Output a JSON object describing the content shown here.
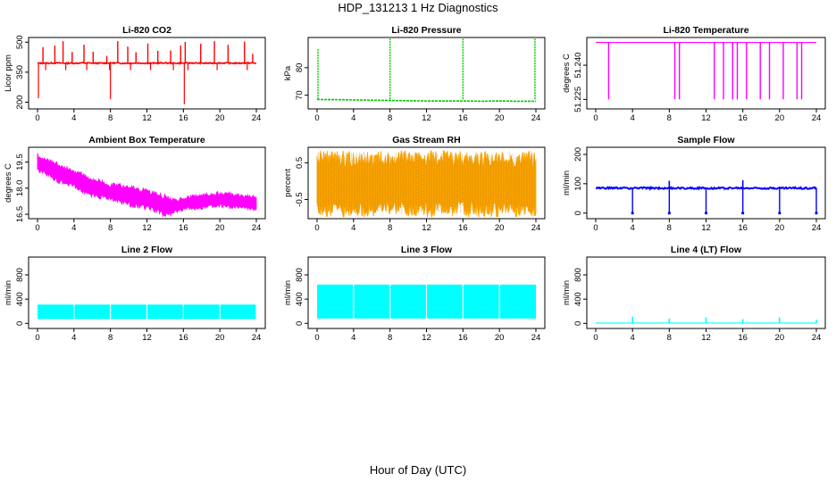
{
  "figure": {
    "title": "HDP_131213  1 Hz Diagnostics",
    "xlabel": "Hour of Day (UTC)"
  },
  "chart_data": [
    {
      "type": "line",
      "title": "Li-820 CO2",
      "ylabel": "Licor ppm",
      "color": "#ff0000",
      "xlim": [
        0,
        24
      ],
      "ylim": [
        180,
        510
      ],
      "xticks": [
        "0",
        "4",
        "8",
        "12",
        "16",
        "20",
        "24"
      ],
      "yticks": [
        {
          "v": 200,
          "label": "200"
        },
        {
          "v": 350,
          "label": "350"
        },
        {
          "v": 500,
          "label": "500"
        }
      ],
      "baseline": 395,
      "x": [
        0,
        0.3,
        0.8,
        2,
        3,
        4,
        5,
        6,
        7,
        8,
        9,
        10,
        11,
        12,
        13,
        14,
        15,
        16,
        17,
        18,
        19,
        20,
        21,
        22,
        23,
        24
      ],
      "y": [
        395,
        395,
        395,
        396,
        395,
        395,
        396,
        395,
        395,
        396,
        395,
        395,
        396,
        395,
        395,
        396,
        395,
        395,
        396,
        395,
        395,
        396,
        395,
        395,
        396,
        395
      ],
      "spikes_up": [
        0.6,
        1.9,
        2.8,
        3.8,
        5.1,
        6.1,
        7.6,
        8.8,
        9.9,
        10.8,
        12.1,
        13.2,
        14.6,
        15.7,
        16.2,
        17.9,
        19.4,
        20.9,
        22.7,
        23.6
      ],
      "spikes_down": [
        {
          "x": 0.1,
          "y": 220
        },
        {
          "x": 8.0,
          "y": 215
        },
        {
          "x": 16.1,
          "y": 190
        }
      ]
    },
    {
      "type": "line",
      "title": "Li-820 Pressure",
      "ylabel": "kPa",
      "color": "#00cc00",
      "xlim": [
        0,
        24
      ],
      "ylim": [
        66,
        90
      ],
      "xticks": [
        "0",
        "4",
        "8",
        "12",
        "16",
        "20",
        "24"
      ],
      "yticks": [
        {
          "v": 70,
          "label": "70"
        },
        {
          "v": 80,
          "label": "80"
        }
      ],
      "x": [
        0,
        0.5,
        2,
        4,
        6,
        8,
        10,
        12,
        14,
        16,
        18,
        20,
        22,
        24
      ],
      "y": [
        68.5,
        68.4,
        68.4,
        68.3,
        68.2,
        68.1,
        68.0,
        67.9,
        67.9,
        67.9,
        67.8,
        67.9,
        67.8,
        67.8
      ],
      "spikes_up": [
        {
          "x": 0.1,
          "y": 87
        },
        {
          "x": 8.0,
          "y": 92
        },
        {
          "x": 16.0,
          "y": 92
        },
        {
          "x": 23.9,
          "y": 92
        }
      ]
    },
    {
      "type": "line",
      "title": "Li-820 Temperature",
      "ylabel": "degrees C",
      "color": "#ff00ff",
      "xlim": [
        0,
        24
      ],
      "ylim": [
        51.222,
        51.251
      ],
      "xticks": [
        "0",
        "4",
        "8",
        "12",
        "16",
        "20",
        "24"
      ],
      "yticks": [
        {
          "v": 51.225,
          "label": "51.225"
        },
        {
          "v": 51.24,
          "label": "51.240"
        }
      ],
      "baseline": 51.25,
      "drops": [
        1.4,
        8.6,
        9.1,
        12.9,
        13.9,
        14.9,
        15.4,
        16.4,
        17.9,
        18.9,
        20.4,
        21.9,
        22.4
      ],
      "drop_to": 51.225
    },
    {
      "type": "area",
      "title": "Ambient Box Temperature",
      "ylabel": "degrees C",
      "color": "#ff00ff",
      "xlim": [
        0,
        24
      ],
      "ylim": [
        16.4,
        20.2
      ],
      "xticks": [
        "0",
        "4",
        "8",
        "12",
        "16",
        "20",
        "24"
      ],
      "yticks": [
        {
          "v": 16.5,
          "label": "16.5"
        },
        {
          "v": 18,
          "label": "18.0"
        },
        {
          "v": 19.5,
          "label": "19.5"
        }
      ],
      "x": [
        0,
        2,
        4,
        6,
        8,
        10,
        12,
        14,
        15,
        16,
        18,
        20,
        22,
        24
      ],
      "ymin": [
        19.1,
        18.5,
        18.1,
        17.6,
        17.4,
        17.1,
        16.9,
        16.5,
        16.6,
        16.8,
        16.9,
        17.0,
        16.9,
        16.8
      ],
      "ymax": [
        19.9,
        19.4,
        19.0,
        18.5,
        18.2,
        18.1,
        17.8,
        17.5,
        17.3,
        17.4,
        17.6,
        17.7,
        17.6,
        17.5
      ]
    },
    {
      "type": "area",
      "title": "Gas Stream RH",
      "ylabel": "percent",
      "color": "#ffa500",
      "xlim": [
        0,
        24
      ],
      "ylim": [
        -0.95,
        0.85
      ],
      "xticks": [
        "0",
        "4",
        "8",
        "12",
        "16",
        "20",
        "24"
      ],
      "yticks": [
        {
          "v": -0.5,
          "label": "-0.5"
        },
        {
          "v": 0.5,
          "label": "0.5"
        }
      ],
      "x": [
        0,
        24
      ],
      "ymin": [
        -0.75,
        -0.75
      ],
      "ymax": [
        0.6,
        0.6
      ]
    },
    {
      "type": "line",
      "title": "Sample Flow",
      "ylabel": "ml/min",
      "color": "#0000ff",
      "xlim": [
        0,
        24
      ],
      "ylim": [
        -10,
        215
      ],
      "xticks": [
        "0",
        "4",
        "8",
        "12",
        "16",
        "20",
        "24"
      ],
      "yticks": [
        {
          "v": 0,
          "label": "0"
        },
        {
          "v": 100,
          "label": "100"
        },
        {
          "v": 200,
          "label": "200"
        }
      ],
      "baseline": 85,
      "spikes_up": [
        {
          "x": 8.0,
          "y": 110
        },
        {
          "x": 16.0,
          "y": 112
        }
      ],
      "spikes_down": [
        {
          "x": 4.0,
          "y": 0
        },
        {
          "x": 8.0,
          "y": 0
        },
        {
          "x": 12.0,
          "y": 0
        },
        {
          "x": 16.0,
          "y": 0
        },
        {
          "x": 20.0,
          "y": 0
        },
        {
          "x": 24.0,
          "y": 0
        }
      ]
    },
    {
      "type": "area",
      "title": "Line 2 Flow",
      "ylabel": "ml/min",
      "color": "#00ffff",
      "xlim": [
        0,
        24
      ],
      "ylim": [
        -40,
        1050
      ],
      "xticks": [
        "0",
        "4",
        "8",
        "12",
        "16",
        "20",
        "24"
      ],
      "yticks": [
        {
          "v": 0,
          "label": "0"
        },
        {
          "v": 400,
          "label": "400"
        },
        {
          "v": 800,
          "label": "800"
        }
      ],
      "ymin": 70,
      "ymax": 310,
      "gaps": [
        4,
        8,
        12,
        16,
        20,
        24
      ]
    },
    {
      "type": "area",
      "title": "Line 3 Flow",
      "ylabel": "ml/min",
      "color": "#00ffff",
      "xlim": [
        0,
        24
      ],
      "ylim": [
        -40,
        1050
      ],
      "xticks": [
        "0",
        "4",
        "8",
        "12",
        "16",
        "20",
        "24"
      ],
      "yticks": [
        {
          "v": 0,
          "label": "0"
        },
        {
          "v": 400,
          "label": "400"
        },
        {
          "v": 800,
          "label": "800"
        }
      ],
      "ymin": 80,
      "ymax": 640,
      "gaps": [
        4,
        8,
        12,
        16,
        20
      ]
    },
    {
      "type": "line",
      "title": "Line 4 (LT) Flow",
      "ylabel": "ml/min",
      "color": "#00ffff",
      "xlim": [
        0,
        24
      ],
      "ylim": [
        -40,
        1050
      ],
      "xticks": [
        "0",
        "4",
        "8",
        "12",
        "16",
        "20",
        "24"
      ],
      "yticks": [
        {
          "v": 0,
          "label": "0"
        },
        {
          "v": 400,
          "label": "400"
        },
        {
          "v": 800,
          "label": "800"
        }
      ],
      "baseline": 5,
      "spikes_up": [
        {
          "x": 4.0,
          "y": 110
        },
        {
          "x": 8.0,
          "y": 80
        },
        {
          "x": 12.0,
          "y": 100
        },
        {
          "x": 16.0,
          "y": 70
        },
        {
          "x": 20.0,
          "y": 100
        },
        {
          "x": 24.0,
          "y": 60
        }
      ]
    }
  ]
}
